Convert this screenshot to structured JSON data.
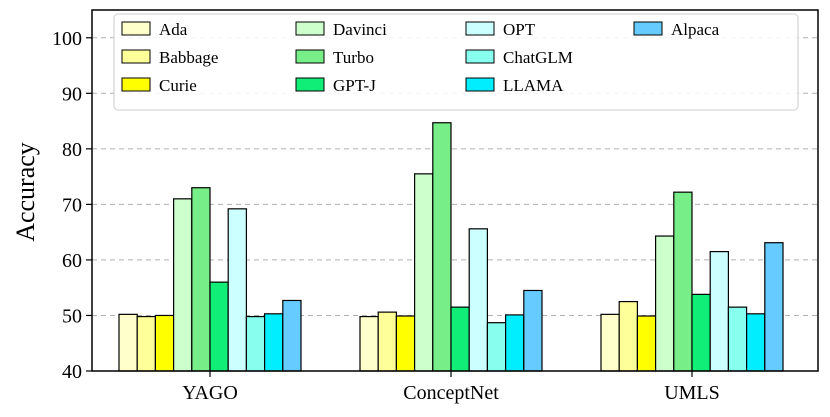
{
  "chart_data": {
    "type": "bar",
    "title": "",
    "xlabel": "",
    "ylabel": "Accuracy",
    "ylim": [
      40,
      105
    ],
    "yticks": [
      40,
      50,
      60,
      70,
      80,
      90,
      100
    ],
    "grid": "y-dashed",
    "legend_position": "top",
    "categories": [
      "YAGO",
      "ConceptNet",
      "UMLS"
    ],
    "series": [
      {
        "name": "Ada",
        "color": "#FFFFCC",
        "values": [
          50.2,
          49.8,
          50.2
        ]
      },
      {
        "name": "Babbage",
        "color": "#FFFF99",
        "values": [
          49.8,
          50.6,
          52.5
        ]
      },
      {
        "name": "Curie",
        "color": "#FFFF00",
        "values": [
          50.0,
          49.9,
          49.9
        ]
      },
      {
        "name": "Davinci",
        "color": "#CCFFCC",
        "values": [
          71.0,
          75.5,
          64.3
        ]
      },
      {
        "name": "Turbo",
        "color": "#77EE88",
        "values": [
          73.0,
          84.7,
          72.2
        ]
      },
      {
        "name": "GPT-J",
        "color": "#11EE77",
        "values": [
          56.0,
          51.5,
          53.8
        ]
      },
      {
        "name": "OPT",
        "color": "#CCFFFF",
        "values": [
          69.2,
          65.6,
          61.5
        ]
      },
      {
        "name": "ChatGLM",
        "color": "#88FFEE",
        "values": [
          49.8,
          48.7,
          51.5
        ]
      },
      {
        "name": "LLAMA",
        "color": "#00EEFF",
        "values": [
          50.3,
          50.1,
          50.3
        ]
      },
      {
        "name": "Alpaca",
        "color": "#66CCFF",
        "values": [
          52.7,
          54.5,
          63.1
        ]
      }
    ]
  }
}
